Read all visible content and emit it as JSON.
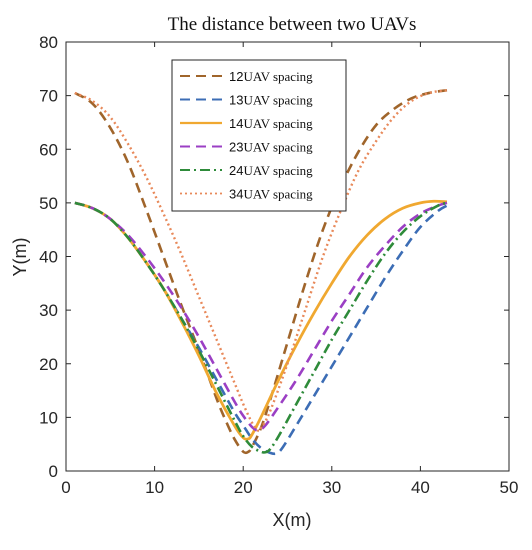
{
  "chart_data": {
    "type": "line",
    "title": "The distance between two UAVs",
    "xlabel": "X(m)",
    "ylabel": "Y(m)",
    "xlim": [
      0,
      50
    ],
    "ylim": [
      0,
      80
    ],
    "xticks": [
      0,
      10,
      20,
      30,
      40,
      50
    ],
    "yticks": [
      0,
      10,
      20,
      30,
      40,
      50,
      60,
      70,
      80
    ],
    "grid": false,
    "legend_position": "top-center",
    "series": [
      {
        "name": "12",
        "suffix": "UAV spacing",
        "color": "#A0652B",
        "dash": "dashed",
        "x": [
          1,
          3,
          5,
          7,
          9,
          11,
          13,
          15,
          17,
          18,
          19,
          20,
          20.6,
          21,
          22,
          23,
          25,
          27,
          29,
          31,
          33,
          35,
          37,
          39,
          41,
          43
        ],
        "y": [
          70.5,
          68.5,
          64,
          57.5,
          49,
          40,
          31,
          22.5,
          13.5,
          9.5,
          6,
          3.6,
          3.6,
          4.5,
          8,
          13,
          24,
          35,
          45,
          53,
          59.5,
          64.5,
          67.5,
          69.5,
          70.5,
          71
        ]
      },
      {
        "name": "13",
        "suffix": "UAV spacing",
        "color": "#3C6DB5",
        "dash": "dashed",
        "x": [
          1,
          3,
          5,
          7,
          9,
          11,
          13,
          15,
          17,
          19,
          20,
          21,
          22,
          23,
          23.8,
          24.5,
          26,
          28,
          30,
          32,
          34,
          36,
          38,
          40,
          42,
          43
        ],
        "y": [
          50,
          49,
          47,
          43.5,
          39,
          34,
          28.5,
          23,
          17,
          11,
          8.5,
          6,
          4.3,
          3.4,
          3.3,
          4.5,
          8.5,
          14,
          19.5,
          25,
          30.5,
          36,
          41,
          45.5,
          48.5,
          49.5
        ]
      },
      {
        "name": "14",
        "suffix": "UAV spacing",
        "color": "#F0A830",
        "dash": "solid",
        "x": [
          1,
          3,
          5,
          7,
          9,
          11,
          13,
          15,
          17,
          19,
          20,
          20.6,
          21,
          22,
          24,
          26,
          28,
          30,
          32,
          34,
          36,
          38,
          40,
          41.5,
          43
        ],
        "y": [
          50,
          49,
          47,
          43.5,
          39,
          34,
          28,
          21.5,
          14.5,
          8.5,
          6.2,
          6,
          6.8,
          10,
          17,
          23.5,
          29.5,
          35,
          40,
          44,
          47,
          49,
          50,
          50.3,
          50.2
        ]
      },
      {
        "name": "23",
        "suffix": "UAV spacing",
        "color": "#9B3FC4",
        "dash": "dashed",
        "x": [
          1,
          3,
          5,
          7,
          9,
          11,
          13,
          15,
          17,
          19,
          20,
          21,
          21.7,
          22.5,
          24,
          26,
          28,
          30,
          32,
          34,
          36,
          38,
          40,
          42,
          43
        ],
        "y": [
          50,
          49,
          47,
          44,
          40,
          35.5,
          30.5,
          25,
          19,
          13,
          10.3,
          8.2,
          7.6,
          8.5,
          12,
          17,
          22.5,
          28,
          33,
          38,
          42,
          45.5,
          48,
          49.5,
          50
        ]
      },
      {
        "name": "24",
        "suffix": "UAV spacing",
        "color": "#2E8B3A",
        "dash": "dashdot",
        "x": [
          1,
          3,
          5,
          7,
          9,
          11,
          13,
          15,
          17,
          19,
          20,
          21,
          22,
          22.5,
          23,
          24,
          26,
          28,
          30,
          32,
          34,
          36,
          38,
          40,
          42,
          43
        ],
        "y": [
          50,
          49,
          47,
          43.5,
          39,
          34,
          28.5,
          22.5,
          16,
          9.5,
          6.5,
          4.5,
          3.6,
          3.5,
          4,
          6.5,
          12.5,
          18.5,
          24.5,
          30,
          35.5,
          40.5,
          44.5,
          47.5,
          49.5,
          50
        ]
      },
      {
        "name": "34",
        "suffix": "UAV spacing",
        "color": "#E8895A",
        "dash": "dotted",
        "x": [
          1,
          3,
          5,
          7,
          9,
          11,
          13,
          15,
          17,
          19,
          20,
          21,
          21.7,
          22,
          23,
          25,
          27,
          29,
          31,
          33,
          35,
          37,
          39,
          41,
          43
        ],
        "y": [
          70.5,
          69,
          66,
          61,
          55,
          48,
          40.5,
          32.5,
          24.5,
          16.5,
          12.5,
          9,
          7.5,
          8,
          11,
          20,
          30,
          40,
          48.5,
          56,
          61.5,
          66,
          69,
          70.5,
          71
        ]
      }
    ]
  }
}
